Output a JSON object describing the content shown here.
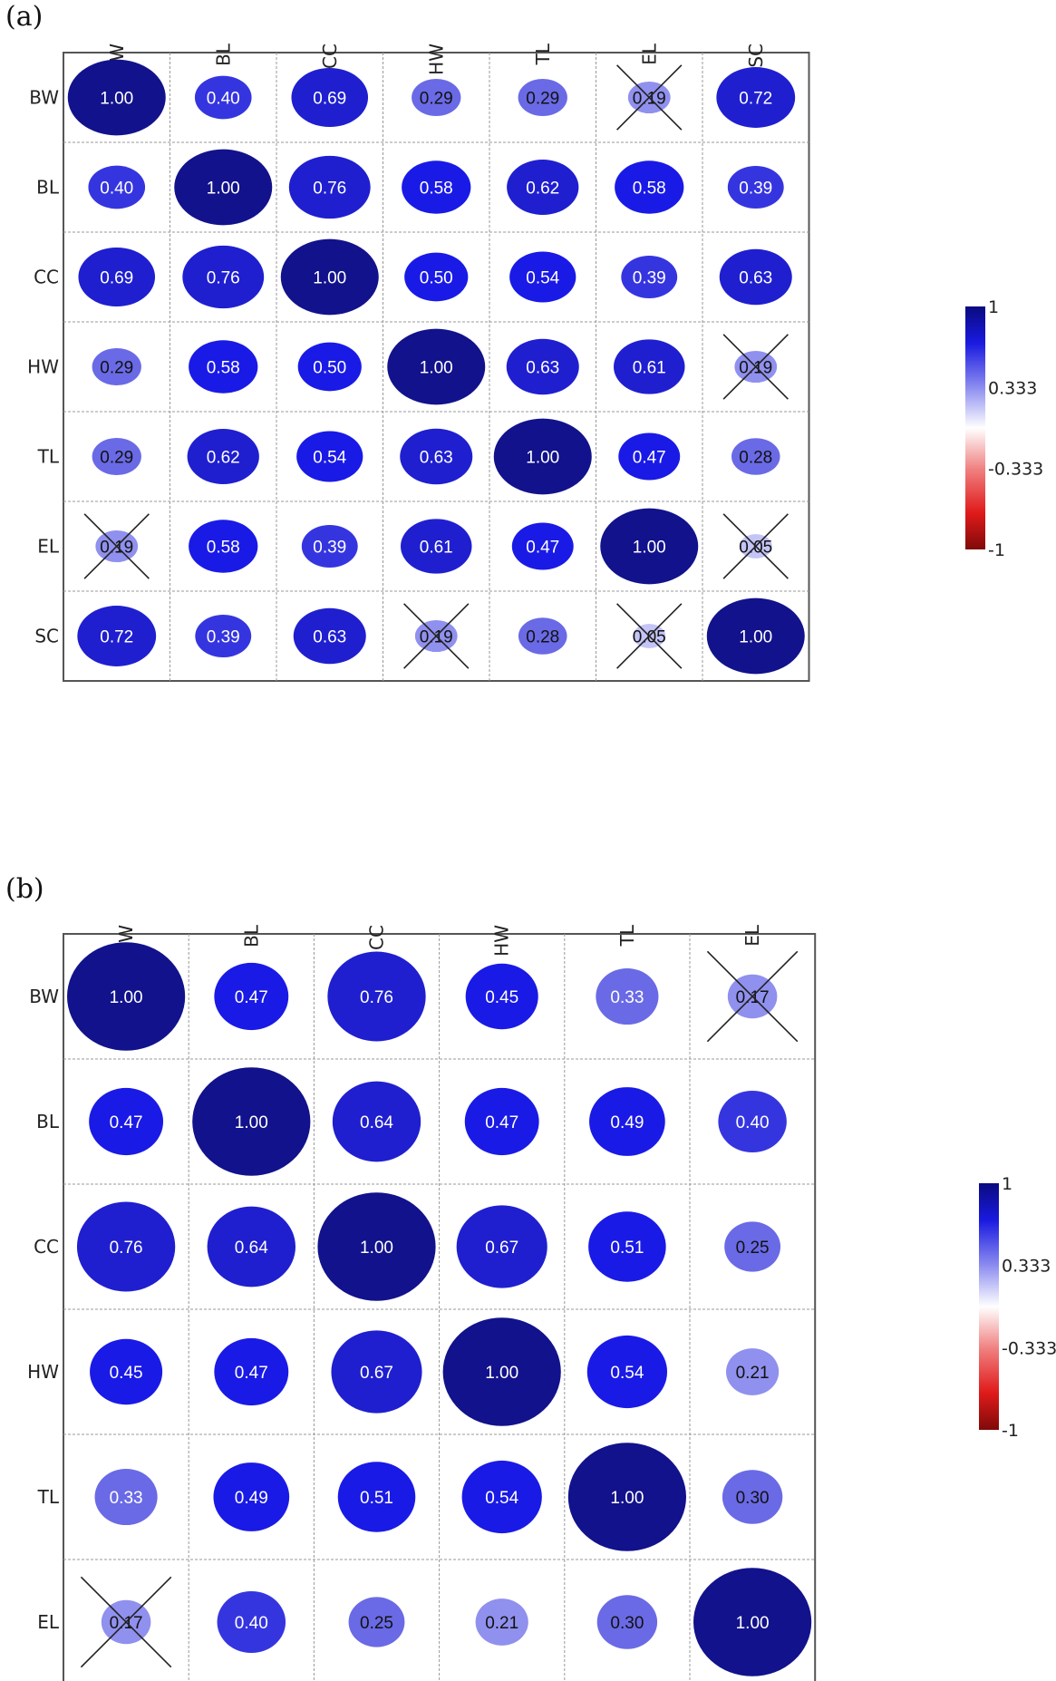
{
  "chart_data": [
    {
      "panel_label": "(a)",
      "type": "heatmap",
      "variables": [
        "BW",
        "BL",
        "CC",
        "HW",
        "TL",
        "EL",
        "SC"
      ],
      "matrix": [
        [
          1.0,
          0.4,
          0.69,
          0.29,
          0.29,
          0.19,
          0.72
        ],
        [
          0.4,
          1.0,
          0.76,
          0.58,
          0.62,
          0.58,
          0.39
        ],
        [
          0.69,
          0.76,
          1.0,
          0.5,
          0.54,
          0.39,
          0.63
        ],
        [
          0.29,
          0.58,
          0.5,
          1.0,
          0.63,
          0.61,
          0.19
        ],
        [
          0.29,
          0.62,
          0.54,
          0.63,
          1.0,
          0.47,
          0.28
        ],
        [
          0.19,
          0.58,
          0.39,
          0.61,
          0.47,
          1.0,
          0.05
        ],
        [
          0.72,
          0.39,
          0.63,
          0.19,
          0.28,
          0.05,
          1.0
        ]
      ],
      "value_labels": [
        [
          "1.00",
          "0.40",
          "0.69",
          "0.29",
          "0.29",
          "0.19",
          "0.72"
        ],
        [
          "0.40",
          "1.00",
          "0.76",
          "0.58",
          "0.62",
          "0.58",
          "0.39"
        ],
        [
          "0.69",
          "0.76",
          "1.00",
          "0.50",
          "0.54",
          "0.39",
          "0.63"
        ],
        [
          "0.29",
          "0.58",
          "0.50",
          "1.00",
          "0.63",
          "0.61",
          "0.19"
        ],
        [
          "0.29",
          "0.62",
          "0.54",
          "0.63",
          "1.00",
          "0.47",
          "0.28"
        ],
        [
          "0.19",
          "0.58",
          "0.39",
          "0.61",
          "0.47",
          "1.00",
          "0.05"
        ],
        [
          "0.72",
          "0.39",
          "0.63",
          "0.19",
          "0.28",
          "0.05",
          "1.00"
        ]
      ],
      "crossed_out": [
        [
          0,
          5
        ],
        [
          3,
          6
        ],
        [
          5,
          0
        ],
        [
          5,
          6
        ],
        [
          6,
          3
        ],
        [
          6,
          5
        ]
      ],
      "colorbar": {
        "range": [
          -1,
          1
        ],
        "ticks": [
          "1",
          "0.333",
          "-0.333",
          "-1"
        ]
      }
    },
    {
      "panel_label": "(b)",
      "type": "heatmap",
      "variables": [
        "BW",
        "BL",
        "CC",
        "HW",
        "TL",
        "EL"
      ],
      "matrix": [
        [
          1.0,
          0.47,
          0.76,
          0.45,
          0.33,
          0.17
        ],
        [
          0.47,
          1.0,
          0.64,
          0.47,
          0.49,
          0.4
        ],
        [
          0.76,
          0.64,
          1.0,
          0.67,
          0.51,
          0.25
        ],
        [
          0.45,
          0.47,
          0.67,
          1.0,
          0.54,
          0.21
        ],
        [
          0.33,
          0.49,
          0.51,
          0.54,
          1.0,
          0.3
        ],
        [
          0.17,
          0.4,
          0.25,
          0.21,
          0.3,
          1.0
        ]
      ],
      "value_labels": [
        [
          "1.00",
          "0.47",
          "0.76",
          "0.45",
          "0.33",
          "0.17"
        ],
        [
          "0.47",
          "1.00",
          "0.64",
          "0.47",
          "0.49",
          "0.40"
        ],
        [
          "0.76",
          "0.64",
          "1.00",
          "0.67",
          "0.51",
          "0.25"
        ],
        [
          "0.45",
          "0.47",
          "0.67",
          "1.00",
          "0.54",
          "0.21"
        ],
        [
          "0.33",
          "0.49",
          "0.51",
          "0.54",
          "1.00",
          "0.30"
        ],
        [
          "0.17",
          "0.40",
          "0.25",
          "0.21",
          "0.30",
          "1.00"
        ]
      ],
      "crossed_out": [
        [
          0,
          5
        ],
        [
          5,
          0
        ]
      ],
      "colorbar": {
        "range": [
          -1,
          1
        ],
        "ticks": [
          "1",
          "0.333",
          "-0.333",
          "-1"
        ]
      }
    }
  ]
}
